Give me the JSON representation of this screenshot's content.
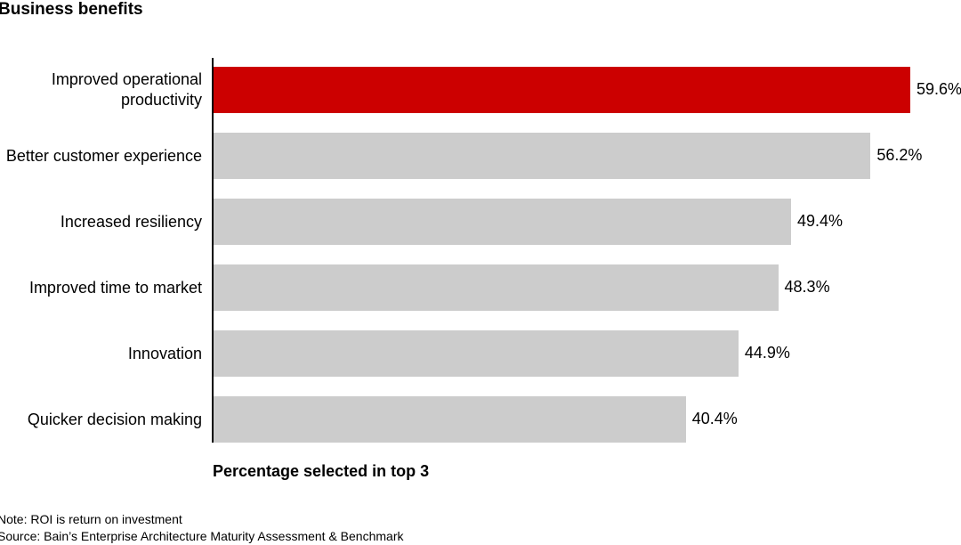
{
  "chart_data": {
    "type": "bar",
    "orientation": "horizontal",
    "title": "Business benefits",
    "categories": [
      "Improved operational productivity",
      "Better customer experience",
      "Increased resiliency",
      "Improved time to market",
      "Innovation",
      "Quicker decision making"
    ],
    "values": [
      59.6,
      56.2,
      49.4,
      48.3,
      44.9,
      40.4
    ],
    "value_labels": [
      "59.6%",
      "56.2%",
      "49.4%",
      "48.3%",
      "44.9%",
      "40.4%"
    ],
    "colors": [
      "#cc0000",
      "#cccccc",
      "#cccccc",
      "#cccccc",
      "#cccccc",
      "#cccccc"
    ],
    "x_label": "Percentage selected in top 3",
    "notes": [
      "Note: ROI is return on investment",
      "Source: Bain’s Enterprise Architecture Maturity Assessment & Benchmark"
    ]
  }
}
